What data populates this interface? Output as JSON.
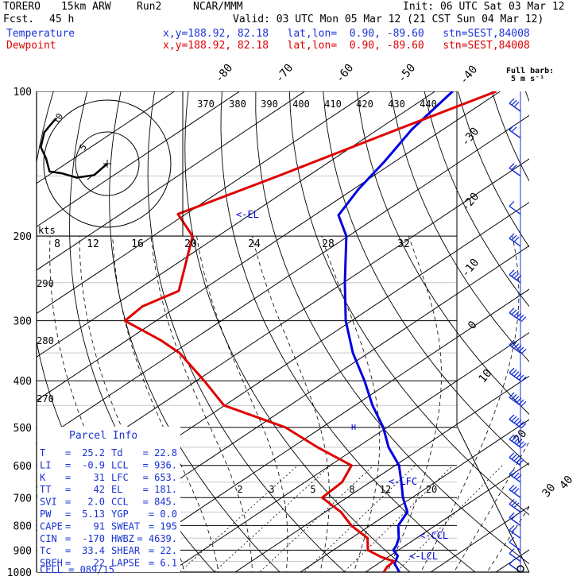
{
  "header": {
    "model": "TORERO",
    "resolution": "15km ARW",
    "run": "Run2",
    "org": "NCAR/MMM",
    "init": "Init: 06 UTC Sat 03 Mar 12",
    "fcst_label": "Fcst.",
    "fcst_value": "45 h",
    "valid": "Valid: 03 UTC Mon 05 Mar 12 (21 CST Sun 04 Mar 12)",
    "legend_temp_name": "Temperature",
    "legend_dew_name": "Dewpoint",
    "legend_temp_info": "x,y=188.92, 82.18   lat,lon=  0.90, -89.60   stn=SEST,84008",
    "legend_dew_info": "x,y=188.92, 82.18   lat,lon=  0.90, -89.60   stn=SEST,84008",
    "full_barb_line1": "Full barb:",
    "full_barb_line2": "5 m s⁻¹"
  },
  "colors": {
    "temperature": "#0000e0",
    "dewpoint": "#e00000",
    "parcel_info": "#1a33d6",
    "wind": "#1a33d6",
    "grid": "#000000"
  },
  "chart_data": {
    "type": "line",
    "title": "",
    "ylabel": "",
    "xlabel": "",
    "pressure_levels": [
      100,
      200,
      300,
      400,
      500,
      600,
      700,
      800,
      900,
      1000
    ],
    "isotherm_labels": [
      -80,
      -70,
      -60,
      -50,
      -40,
      -30,
      -20,
      -10,
      0,
      10,
      20,
      30,
      40
    ],
    "theta_labels": [
      370,
      380,
      390,
      400,
      410,
      420,
      430,
      440
    ],
    "theta_small_labels": [
      290,
      280,
      270
    ],
    "mixing_ratio_labels": [
      2,
      3,
      5,
      8,
      12,
      20
    ],
    "wind_speed_ring_labels": [
      8,
      12,
      16,
      20,
      24,
      28,
      32
    ],
    "hodograph_ring_labels": [
      "5",
      "10"
    ],
    "hodograph_units": "kts",
    "markers": [
      {
        "label": "<-EL",
        "pressure": 181
      },
      {
        "label": "<-LFC",
        "pressure": 653
      },
      {
        "label": "<-CCL",
        "pressure": 845
      },
      {
        "label": "<-LCL",
        "pressure": 936
      }
    ],
    "series": [
      {
        "name": "Temperature",
        "points": [
          [
            100,
            -77.3
          ],
          [
            120,
            -74.8
          ],
          [
            140,
            -71.6
          ],
          [
            160,
            -69.2
          ],
          [
            181,
            -66.3
          ],
          [
            200,
            -60.3
          ],
          [
            250,
            -49.8
          ],
          [
            300,
            -40.9
          ],
          [
            350,
            -32.4
          ],
          [
            400,
            -24.2
          ],
          [
            450,
            -17.3
          ],
          [
            500,
            -10.6
          ],
          [
            550,
            -5.2
          ],
          [
            600,
            0.6
          ],
          [
            650,
            4.8
          ],
          [
            700,
            8.6
          ],
          [
            750,
            12.6
          ],
          [
            800,
            14.3
          ],
          [
            850,
            17.3
          ],
          [
            880,
            18.6
          ],
          [
            900,
            19.2
          ],
          [
            925,
            21.2
          ],
          [
            960,
            22.5
          ],
          [
            1000,
            25.2
          ]
        ]
      },
      {
        "name": "Dewpoint",
        "points": [
          [
            100,
            -70.6
          ],
          [
            120,
            -77.0
          ],
          [
            150,
            -84.6
          ],
          [
            180,
            -91.2
          ],
          [
            200,
            -83.9
          ],
          [
            230,
            -78.3
          ],
          [
            260,
            -73.4
          ],
          [
            280,
            -75.4
          ],
          [
            300,
            -74.8
          ],
          [
            330,
            -64.6
          ],
          [
            350,
            -59.0
          ],
          [
            400,
            -48.8
          ],
          [
            450,
            -40.1
          ],
          [
            500,
            -25.6
          ],
          [
            550,
            -16.1
          ],
          [
            600,
            -6.7
          ],
          [
            650,
            -4.3
          ],
          [
            700,
            -3.8
          ],
          [
            750,
            2.4
          ],
          [
            800,
            7.1
          ],
          [
            850,
            12.5
          ],
          [
            900,
            15.3
          ],
          [
            930,
            18.9
          ],
          [
            950,
            21.9
          ],
          [
            975,
            22.1
          ],
          [
            1000,
            22.8
          ]
        ]
      }
    ],
    "wind_barbs": [
      {
        "pressure": 110,
        "speed_kt": 15
      },
      {
        "pressure": 125,
        "speed_kt": 10
      },
      {
        "pressure": 150,
        "speed_kt": 10
      },
      {
        "pressure": 180,
        "speed_kt": 5
      },
      {
        "pressure": 210,
        "speed_kt": 15
      },
      {
        "pressure": 250,
        "speed_kt": 20
      },
      {
        "pressure": 300,
        "speed_kt": 35
      },
      {
        "pressure": 350,
        "speed_kt": 40
      },
      {
        "pressure": 400,
        "speed_kt": 40
      },
      {
        "pressure": 450,
        "speed_kt": 40
      },
      {
        "pressure": 500,
        "speed_kt": 35
      },
      {
        "pressure": 550,
        "speed_kt": 30
      },
      {
        "pressure": 600,
        "speed_kt": 25
      },
      {
        "pressure": 650,
        "speed_kt": 20
      },
      {
        "pressure": 700,
        "speed_kt": 15
      },
      {
        "pressure": 750,
        "speed_kt": 15
      },
      {
        "pressure": 800,
        "speed_kt": 10
      },
      {
        "pressure": 850,
        "speed_kt": 10
      },
      {
        "pressure": 900,
        "speed_kt": 5
      },
      {
        "pressure": 950,
        "speed_kt": 5
      },
      {
        "pressure": 1000,
        "speed_kt": 5
      }
    ],
    "hodograph": [
      [
        0,
        0
      ],
      [
        -1.5,
        -1.3
      ],
      [
        -3.5,
        -1.6
      ],
      [
        -5.2,
        -1.1
      ],
      [
        -6.6,
        -0.9
      ],
      [
        -7.0,
        0.6
      ],
      [
        -7.6,
        1.9
      ],
      [
        -7.2,
        3.6
      ],
      [
        -6.2,
        4.8
      ],
      [
        -5.8,
        5.2
      ]
    ]
  },
  "parcel_info": {
    "title": "Parcel Info",
    "rows": [
      {
        "l1": "T",
        "v1": "25.2",
        "l2": "Td",
        "v2": "= 22.8"
      },
      {
        "l1": "LI",
        "v1": "-0.9",
        "l2": "LCL",
        "v2": "= 936."
      },
      {
        "l1": "K",
        "v1": "31",
        "l2": "LFC",
        "v2": "= 653."
      },
      {
        "l1": "TT",
        "v1": "42",
        "l2": "EL",
        "v2": "= 181."
      },
      {
        "l1": "SVI",
        "v1": "2.0",
        "l2": "CCL",
        "v2": "= 845."
      },
      {
        "l1": "PW",
        "v1": "5.13",
        "l2": "YGP",
        "v2": "= 0.0"
      },
      {
        "l1": "CAPE",
        "v1": "91",
        "l2": "SWEAT",
        "v2": "= 195"
      },
      {
        "l1": "CIN",
        "v1": "-170",
        "l2": "HWBZ",
        "v2": "= 4639."
      },
      {
        "l1": "Tc",
        "v1": "33.4",
        "l2": "SHEAR",
        "v2": "= 22."
      },
      {
        "l1": "SREH",
        "v1": "22",
        "l2": "LAPSE",
        "v2": "= 6.1"
      }
    ],
    "cell": "CELL = 089/15"
  }
}
